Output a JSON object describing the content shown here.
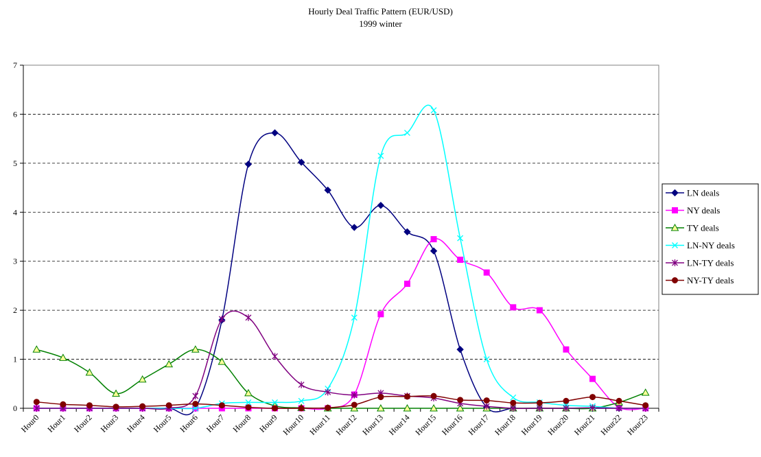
{
  "chart_data": {
    "type": "line",
    "title": "Hourly Deal Traffic Pattern (EUR/USD)",
    "subtitle": "1999 winter",
    "xlabel": "",
    "ylabel": "",
    "ylim": [
      0,
      7
    ],
    "yticks": [
      0,
      1,
      2,
      3,
      4,
      5,
      6,
      7
    ],
    "grid": "horizontal-dashed",
    "legend_position": "right",
    "categories": [
      "Hour0",
      "Hour1",
      "Hour2",
      "Hour3",
      "Hour4",
      "Hour5",
      "Hour6",
      "Hour7",
      "Hour8",
      "Hour9",
      "Hour10",
      "Hour11",
      "Hour12",
      "Hour13",
      "Hour14",
      "Hour15",
      "Hour16",
      "Hour17",
      "Hour18",
      "Hour19",
      "Hour20",
      "Hour21",
      "Hour22",
      "Hour23"
    ],
    "series": [
      {
        "name": "LN deals",
        "color": "#000080",
        "marker": "diamond",
        "values": [
          0,
          0,
          0,
          0,
          0,
          0,
          0,
          1.8,
          4.98,
          5.62,
          5.02,
          4.45,
          3.69,
          4.14,
          3.6,
          3.21,
          1.2,
          0.02,
          0,
          0,
          0,
          0,
          0,
          0
        ]
      },
      {
        "name": "NY deals",
        "color": "#ff00ff",
        "marker": "square",
        "values": [
          0,
          0,
          0,
          0,
          0,
          0,
          0,
          0,
          0,
          0,
          0,
          0,
          0.28,
          1.92,
          2.54,
          3.45,
          3.03,
          2.77,
          2.06,
          2.0,
          1.2,
          0.6,
          0.02,
          0
        ]
      },
      {
        "name": "TY deals",
        "color": "#008000",
        "marker": "triangle",
        "values": [
          1.2,
          1.03,
          0.73,
          0.3,
          0.59,
          0.9,
          1.2,
          0.95,
          0.31,
          0.05,
          0.01,
          0,
          0,
          0,
          0,
          0,
          0,
          0,
          0,
          0,
          0,
          0,
          0.12,
          0.32
        ]
      },
      {
        "name": "LN-NY deals",
        "color": "#00ffff",
        "marker": "x",
        "values": [
          0,
          0,
          0,
          0,
          0,
          0,
          0,
          0.1,
          0.12,
          0.12,
          0.15,
          0.4,
          1.85,
          5.15,
          5.62,
          6.08,
          3.47,
          1.0,
          0.22,
          0.12,
          0.06,
          0.04,
          0,
          0
        ]
      },
      {
        "name": "LN-TY deals",
        "color": "#800080",
        "marker": "star",
        "values": [
          0,
          0,
          0,
          0,
          0,
          0,
          0.25,
          1.82,
          1.85,
          1.06,
          0.48,
          0.33,
          0.27,
          0.31,
          0.25,
          0.21,
          0.1,
          0.04,
          0,
          0,
          0,
          0.01,
          0,
          0
        ]
      },
      {
        "name": "NY-TY deals",
        "color": "#800000",
        "marker": "circle",
        "values": [
          0.13,
          0.08,
          0.06,
          0.03,
          0.04,
          0.06,
          0.09,
          0.06,
          0.02,
          0,
          0,
          0.01,
          0.07,
          0.23,
          0.24,
          0.25,
          0.17,
          0.16,
          0.11,
          0.11,
          0.15,
          0.23,
          0.15,
          0.06
        ]
      }
    ]
  }
}
